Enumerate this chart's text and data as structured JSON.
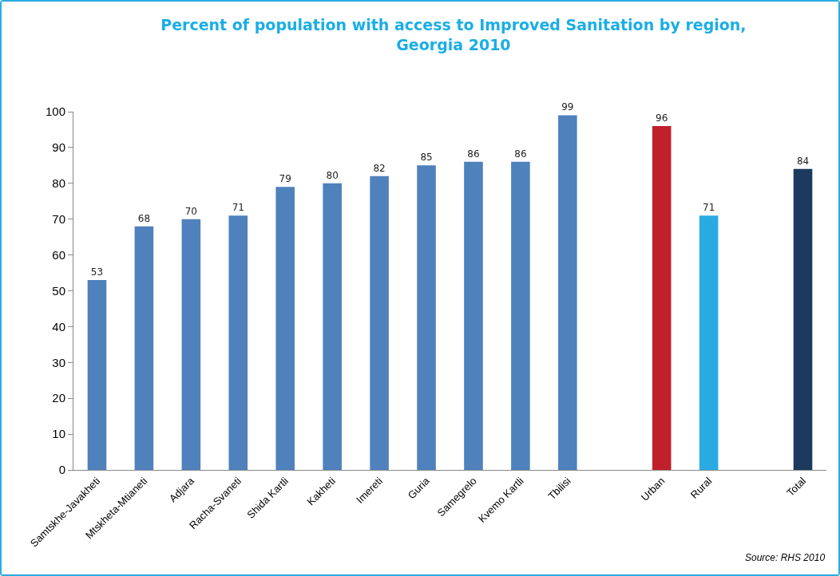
{
  "chart_data": {
    "type": "bar",
    "title": "Percent of population with access to Improved Sanitation by region,\nGeorgia 2010",
    "categories": [
      "Samtskhe-Javakheti",
      "Mtskheta-Mtianeti",
      "Adjara",
      "Racha-Svaneti",
      "Shida Kartli",
      "Kakheti",
      "Imereti",
      "Guria",
      "Samegrelo",
      "Kvemo Kartli",
      "Tbilisi",
      null,
      "Urban",
      "Rural",
      null,
      "Total"
    ],
    "values": [
      53,
      68,
      70,
      71,
      79,
      80,
      82,
      85,
      86,
      86,
      99,
      null,
      96,
      71,
      null,
      84
    ],
    "colors": [
      "#4f81bd",
      "#4f81bd",
      "#4f81bd",
      "#4f81bd",
      "#4f81bd",
      "#4f81bd",
      "#4f81bd",
      "#4f81bd",
      "#4f81bd",
      "#4f81bd",
      "#4f81bd",
      "#4f81bd",
      "#c0202a",
      "#29abe2",
      "#4f81bd",
      "#1b3a5e"
    ],
    "ylim": [
      0,
      100
    ],
    "yticks": [
      0,
      10,
      20,
      30,
      40,
      50,
      60,
      70,
      80,
      90,
      100
    ],
    "grid": false,
    "data_labels": true,
    "annotations": [
      "Source: RHS 2010"
    ]
  }
}
